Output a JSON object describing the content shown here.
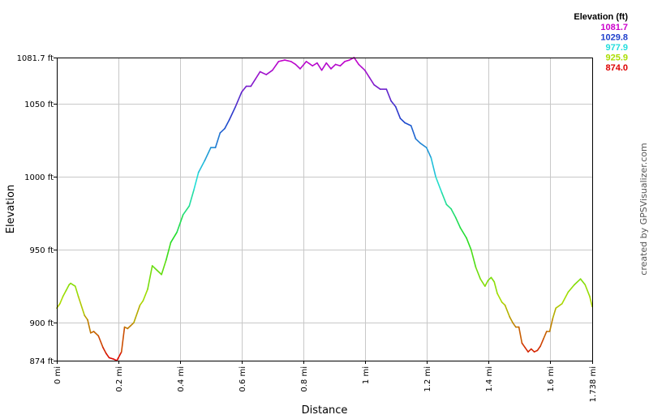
{
  "chart_data": {
    "type": "line",
    "xlabel": "Distance",
    "ylabel": "Elevation",
    "xlim": [
      0,
      1.738
    ],
    "ylim": [
      874.0,
      1081.7
    ],
    "y_ticks": [
      {
        "value": 874.0,
        "label": "874 ft"
      },
      {
        "value": 900,
        "label": "900 ft"
      },
      {
        "value": 950,
        "label": "950 ft"
      },
      {
        "value": 1000,
        "label": "1000 ft"
      },
      {
        "value": 1050,
        "label": "1050 ft"
      },
      {
        "value": 1081.7,
        "label": "1081.7 ft"
      }
    ],
    "x_ticks": [
      {
        "value": 0,
        "label": "0 mi"
      },
      {
        "value": 0.2,
        "label": "0.2 mi"
      },
      {
        "value": 0.4,
        "label": "0.4 mi"
      },
      {
        "value": 0.6,
        "label": "0.6 mi"
      },
      {
        "value": 0.8,
        "label": "0.8 mi"
      },
      {
        "value": 1.0,
        "label": "1 mi"
      },
      {
        "value": 1.2,
        "label": "1.2 mi"
      },
      {
        "value": 1.4,
        "label": "1.4 mi"
      },
      {
        "value": 1.6,
        "label": "1.6 mi"
      },
      {
        "value": 1.738,
        "label": "1.738 mi"
      }
    ],
    "grid": true,
    "legend": {
      "title": "Elevation (ft)",
      "position": "top-right",
      "entries": [
        {
          "label": "1081.7",
          "color": "#cc00cc"
        },
        {
          "label": "1029.8",
          "color": "#1f3fcc"
        },
        {
          "label": "977.9",
          "color": "#22dddd"
        },
        {
          "label": "925.9",
          "color": "#aadd00"
        },
        {
          "label": "874.0",
          "color": "#dd0000"
        }
      ]
    },
    "color_scale": [
      "#dd0000",
      "#aadd00",
      "#22dd22",
      "#22dddd",
      "#1f3fcc",
      "#cc00cc"
    ],
    "series": [
      {
        "x": [
          0,
          0.01,
          0.02,
          0.03,
          0.04,
          0.045,
          0.06,
          0.07,
          0.09,
          0.1,
          0.11,
          0.12,
          0.135,
          0.15,
          0.16,
          0.17,
          0.185,
          0.195,
          0.2,
          0.21,
          0.22,
          0.23,
          0.24,
          0.25,
          0.27,
          0.28,
          0.295,
          0.31,
          0.325,
          0.34,
          0.355,
          0.37,
          0.39,
          0.41,
          0.43,
          0.445,
          0.46,
          0.48,
          0.5,
          0.515,
          0.53,
          0.545,
          0.56,
          0.58,
          0.6,
          0.615,
          0.63,
          0.645,
          0.66,
          0.68,
          0.7,
          0.72,
          0.74,
          0.76,
          0.775,
          0.79,
          0.81,
          0.83,
          0.845,
          0.86,
          0.875,
          0.89,
          0.905,
          0.92,
          0.935,
          0.95,
          0.965,
          0.98,
          0.99,
          1.0,
          1.015,
          1.03,
          1.05,
          1.07,
          1.085,
          1.1,
          1.115,
          1.13,
          1.15,
          1.165,
          1.18,
          1.2,
          1.215,
          1.23,
          1.25,
          1.265,
          1.28,
          1.295,
          1.31,
          1.33,
          1.345,
          1.36,
          1.375,
          1.39,
          1.4,
          1.41,
          1.42,
          1.43,
          1.445,
          1.455,
          1.47,
          1.48,
          1.49,
          1.5,
          1.51,
          1.52,
          1.53,
          1.54,
          1.55,
          1.56,
          1.57,
          1.58,
          1.59,
          1.6,
          1.61,
          1.62,
          1.64,
          1.66,
          1.68,
          1.7,
          1.715,
          1.73,
          1.738
        ],
        "values": [
          910,
          913,
          918,
          922,
          926,
          927,
          925,
          918,
          905,
          902,
          893,
          894,
          891,
          883,
          879,
          876,
          875,
          874,
          876,
          880,
          897,
          896,
          898,
          900,
          912,
          915,
          923,
          939,
          936,
          933,
          943,
          955,
          962,
          974,
          980,
          991,
          1003,
          1011,
          1020,
          1020,
          1030,
          1033,
          1039,
          1048,
          1058,
          1062,
          1062,
          1067,
          1072,
          1070,
          1073,
          1079,
          1080,
          1079,
          1077,
          1074,
          1079,
          1076,
          1078,
          1073,
          1078,
          1074,
          1077,
          1076,
          1079,
          1080,
          1081.7,
          1077,
          1075,
          1073,
          1068,
          1063,
          1060,
          1060,
          1052,
          1048,
          1040,
          1037,
          1035,
          1026,
          1023,
          1020,
          1013,
          1000,
          989,
          981,
          978,
          972,
          965,
          958,
          950,
          938,
          930,
          925,
          929,
          931,
          928,
          920,
          914,
          912,
          904,
          900,
          897,
          897,
          886,
          883,
          880,
          882,
          880,
          881,
          884,
          889,
          894,
          894,
          903,
          910,
          913,
          921,
          926,
          930,
          926,
          918,
          911
        ]
      }
    ]
  },
  "credit": "created by GPSVisualizer.com"
}
